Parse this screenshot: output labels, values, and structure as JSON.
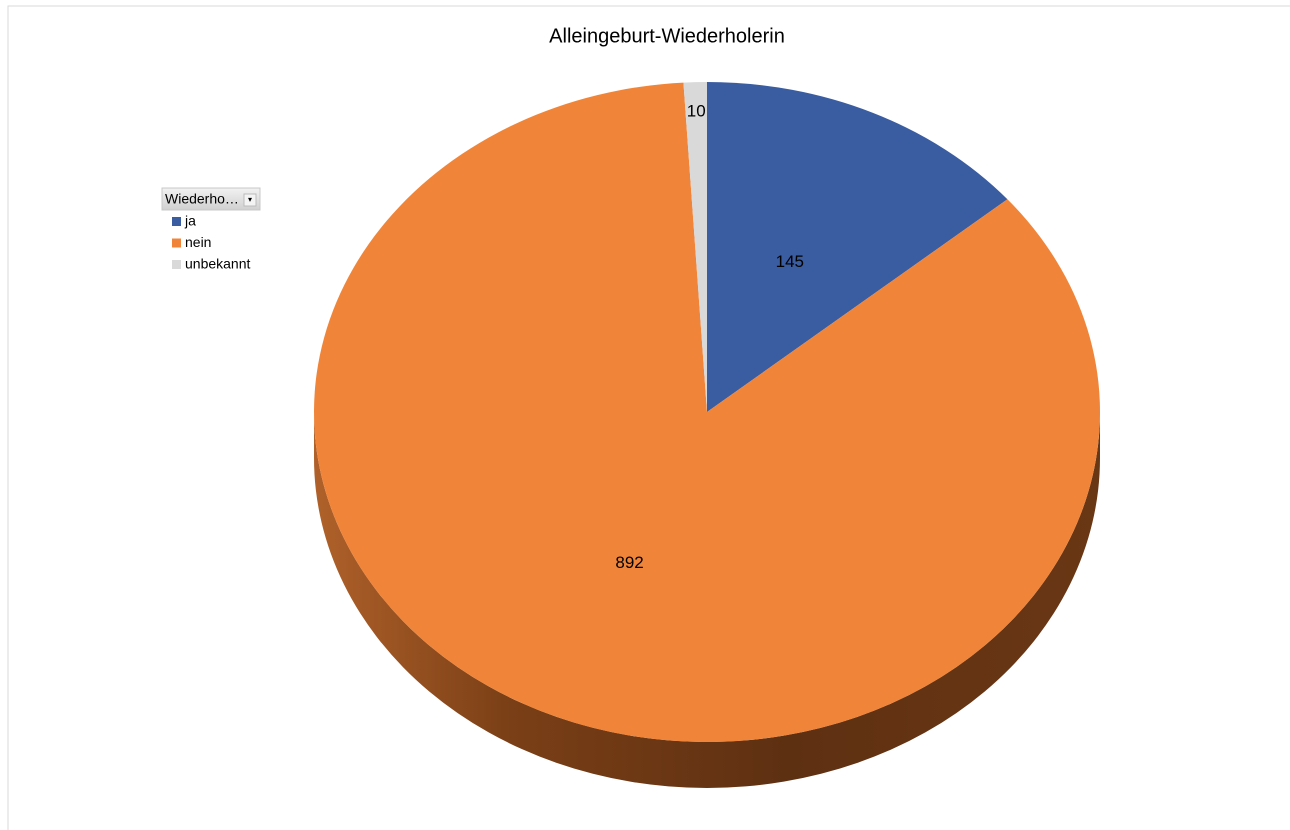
{
  "chart_data": {
    "type": "pie",
    "title": "Alleingeburt-Wiederholerin",
    "legend_title": "Wiederho…",
    "categories": [
      "ja",
      "nein",
      "unbekannt"
    ],
    "values": [
      145,
      892,
      10
    ],
    "colors": [
      "#3a5ca0",
      "#f0853a",
      "#d9d9d9"
    ],
    "legend": "left",
    "three_d": true
  }
}
